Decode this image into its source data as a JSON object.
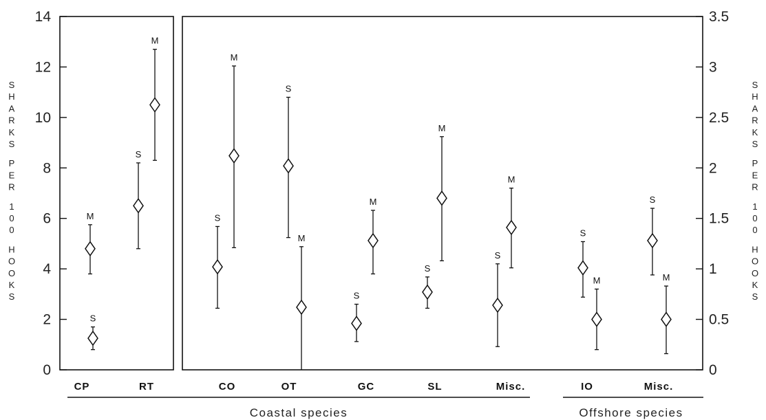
{
  "chart_data": {
    "type": "scatter",
    "title": "",
    "grid": false,
    "ylabel_left": "SHARKS PER 100 HOOKS",
    "ylabel_right": "SHARKS PER 100 HOOKS",
    "panels": [
      {
        "axis": "left",
        "ylim": [
          0,
          14
        ],
        "yticks": [
          "0",
          "2",
          "4",
          "6",
          "8",
          "10",
          "12",
          "14"
        ],
        "categories": [
          "CP",
          "RT"
        ],
        "points": [
          {
            "category": "CP",
            "label": "S",
            "value": 1.25,
            "lower": 0.8,
            "upper": 1.7
          },
          {
            "category": "CP",
            "label": "M",
            "value": 4.8,
            "lower": 3.8,
            "upper": 5.75
          },
          {
            "category": "RT",
            "label": "S",
            "value": 6.5,
            "lower": 4.8,
            "upper": 8.2
          },
          {
            "category": "RT",
            "label": "M",
            "value": 10.5,
            "lower": 8.3,
            "upper": 12.7
          }
        ]
      },
      {
        "axis": "right",
        "ylim": [
          0,
          3.5
        ],
        "yticks": [
          "0",
          "0.5",
          "1",
          "1.5",
          "2",
          "2.5",
          "3",
          "3.5"
        ],
        "categories": [
          "CO",
          "OT",
          "GC",
          "SL",
          "Misc.",
          "IO",
          "Misc."
        ],
        "points": [
          {
            "category": "CO",
            "label": "S",
            "value": 1.02,
            "lower": 0.61,
            "upper": 1.42
          },
          {
            "category": "CO",
            "label": "M",
            "value": 2.12,
            "lower": 1.21,
            "upper": 3.01
          },
          {
            "category": "OT",
            "label": "S",
            "value": 2.02,
            "lower": 1.31,
            "upper": 2.7
          },
          {
            "category": "OT",
            "label": "M",
            "value": 0.62,
            "lower": 0.0,
            "upper": 1.22
          },
          {
            "category": "GC",
            "label": "S",
            "value": 0.46,
            "lower": 0.28,
            "upper": 0.65
          },
          {
            "category": "GC",
            "label": "M",
            "value": 1.28,
            "lower": 0.95,
            "upper": 1.58
          },
          {
            "category": "SL",
            "label": "S",
            "value": 0.77,
            "lower": 0.61,
            "upper": 0.92
          },
          {
            "category": "SL",
            "label": "M",
            "value": 1.7,
            "lower": 1.08,
            "upper": 2.31
          },
          {
            "category": "Misc.",
            "label": "S",
            "value": 0.64,
            "lower": 0.23,
            "upper": 1.05
          },
          {
            "category": "Misc.",
            "label": "M",
            "value": 1.41,
            "lower": 1.01,
            "upper": 1.8
          },
          {
            "category": "IO",
            "label": "S",
            "value": 1.01,
            "lower": 0.72,
            "upper": 1.27
          },
          {
            "category": "IO",
            "label": "M",
            "value": 0.5,
            "lower": 0.2,
            "upper": 0.8
          },
          {
            "category": "Misc.",
            "label": "S",
            "value": 1.28,
            "lower": 0.94,
            "upper": 1.6
          },
          {
            "category": "Misc.",
            "label": "M",
            "value": 0.5,
            "lower": 0.16,
            "upper": 0.83
          }
        ]
      }
    ],
    "groups": [
      {
        "label": "Coastal species",
        "categories": [
          "CP",
          "RT",
          "CO",
          "OT",
          "GC",
          "SL",
          "Misc."
        ]
      },
      {
        "label": "Offshore species",
        "categories": [
          "IO",
          "Misc."
        ]
      }
    ]
  }
}
